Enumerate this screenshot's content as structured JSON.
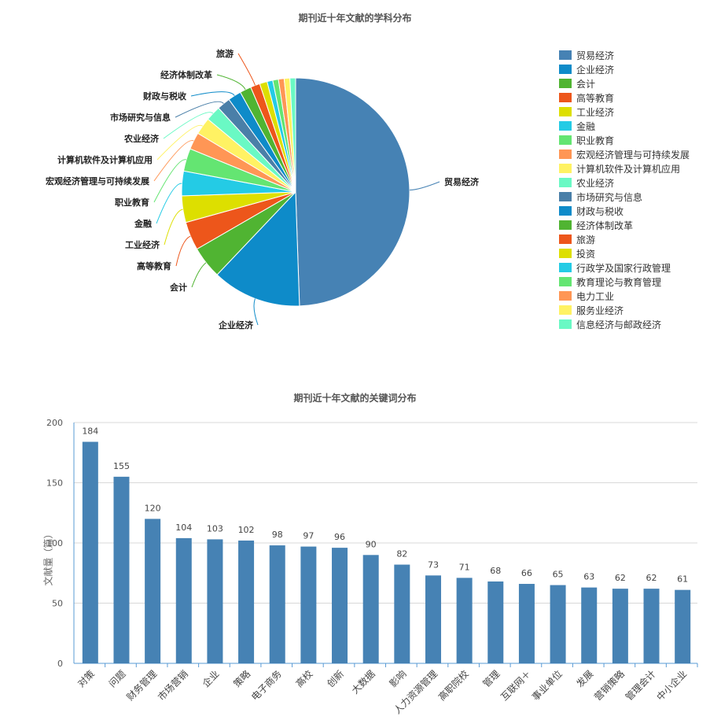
{
  "chart_data": [
    {
      "type": "pie",
      "title": "期刊近十年文献的学科分布",
      "legend_position": "right",
      "slices": [
        {
          "label": "贸易经济",
          "value": 184,
          "color": "#4682b4"
        },
        {
          "label": "企业经济",
          "value": 47,
          "color": "#0e8bc9"
        },
        {
          "label": "会计",
          "value": 17,
          "color": "#50b432"
        },
        {
          "label": "高等教育",
          "value": 15,
          "color": "#ed561b"
        },
        {
          "label": "工业经济",
          "value": 14,
          "color": "#dddf00"
        },
        {
          "label": "金融",
          "value": 13,
          "color": "#24cbe5"
        },
        {
          "label": "职业教育",
          "value": 12,
          "color": "#64e572"
        },
        {
          "label": "宏观经济管理与可持续发展",
          "value": 9,
          "color": "#ff9655"
        },
        {
          "label": "计算机软件及计算机应用",
          "value": 9,
          "color": "#fff263"
        },
        {
          "label": "农业经济",
          "value": 8,
          "color": "#6af9c4"
        },
        {
          "label": "市场研究与信息",
          "value": 7,
          "color": "#4a7fa8"
        },
        {
          "label": "财政与税收",
          "value": 7,
          "color": "#0e8bc9"
        },
        {
          "label": "经济体制改革",
          "value": 6,
          "color": "#50b432"
        },
        {
          "label": "旅游",
          "value": 5,
          "color": "#ed561b"
        },
        {
          "label": "投资",
          "value": 4,
          "color": "#dddf00"
        },
        {
          "label": "行政学及国家行政管理",
          "value": 3,
          "color": "#24cbe5"
        },
        {
          "label": "教育理论与教育管理",
          "value": 3,
          "color": "#64e572"
        },
        {
          "label": "电力工业",
          "value": 3,
          "color": "#ff9655"
        },
        {
          "label": "服务业经济",
          "value": 3,
          "color": "#fff263"
        },
        {
          "label": "信息经济与邮政经济",
          "value": 3,
          "color": "#6af9c4"
        }
      ],
      "callout_labels": [
        "贸易经济",
        "企业经济",
        "会计",
        "高等教育",
        "工业经济",
        "金融",
        "职业教育",
        "宏观经济管理与可持续发展",
        "计算机软件及计算机应用",
        "农业经济",
        "市场研究与信息",
        "财政与税收",
        "经济体制改革",
        "旅游"
      ]
    },
    {
      "type": "bar",
      "title": "期刊近十年文献的关键词分布",
      "ylabel": "文献量（篇）",
      "ylim": [
        0,
        200
      ],
      "yticks": [
        0,
        50,
        100,
        150,
        200
      ],
      "grid": true,
      "bar_color": "#4682b4",
      "categories": [
        "对策",
        "问题",
        "财务管理",
        "市场营销",
        "企业",
        "策略",
        "电子商务",
        "高校",
        "创新",
        "大数据",
        "影响",
        "人力资源管理",
        "高职院校",
        "管理",
        "互联网＋",
        "事业单位",
        "发展",
        "营销策略",
        "管理会计",
        "中小企业"
      ],
      "values": [
        184,
        155,
        120,
        104,
        103,
        102,
        98,
        97,
        96,
        90,
        82,
        73,
        71,
        68,
        66,
        65,
        63,
        62,
        62,
        61
      ]
    }
  ]
}
